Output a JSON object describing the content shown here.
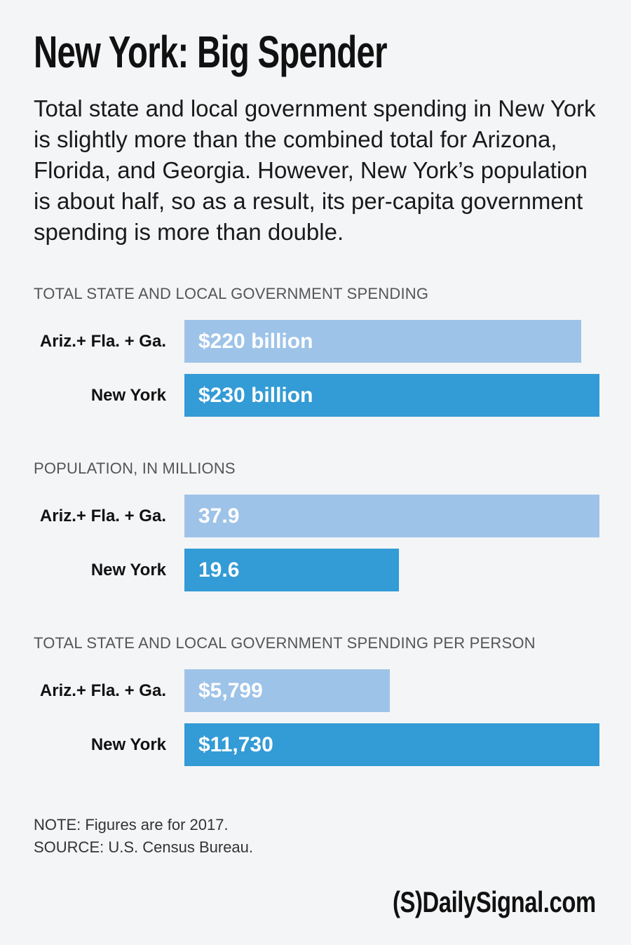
{
  "title": "New York: Big Spender",
  "subtitle": "Total state and local government spending in New York is slightly more than the combined total for Arizona, Florida, and Georgia. However, New York’s population is about half, so as a result, its per-capita government spending is more than double.",
  "colors": {
    "light_bar": "#9ec3e8",
    "dark_bar": "#339bd5",
    "background": "#f4f5f7"
  },
  "chart_data": [
    {
      "type": "bar",
      "orientation": "horizontal",
      "title": "TOTAL STATE AND LOCAL GOVERNMENT SPENDING",
      "categories": [
        "Ariz.+ Fla. + Ga.",
        "New York"
      ],
      "values": [
        220,
        230
      ],
      "data_labels": [
        "$220 billion",
        "$230 billion"
      ],
      "unit": "billion dollars",
      "grid": false
    },
    {
      "type": "bar",
      "orientation": "horizontal",
      "title": "POPULATION, IN MILLIONS",
      "categories": [
        "Ariz.+ Fla. + Ga.",
        "New York"
      ],
      "values": [
        37.9,
        19.6
      ],
      "data_labels": [
        "37.9",
        "19.6"
      ],
      "unit": "millions",
      "grid": false
    },
    {
      "type": "bar",
      "orientation": "horizontal",
      "title": "TOTAL STATE AND LOCAL GOVERNMENT SPENDING PER PERSON",
      "categories": [
        "Ariz.+ Fla. + Ga.",
        "New York"
      ],
      "values": [
        5799,
        11730
      ],
      "data_labels": [
        "$5,799",
        "$11,730"
      ],
      "unit": "dollars",
      "grid": false
    }
  ],
  "note": "NOTE: Figures are for 2017.",
  "source": "SOURCE: U.S. Census Bureau.",
  "logo": "(S)DailySignal.com"
}
